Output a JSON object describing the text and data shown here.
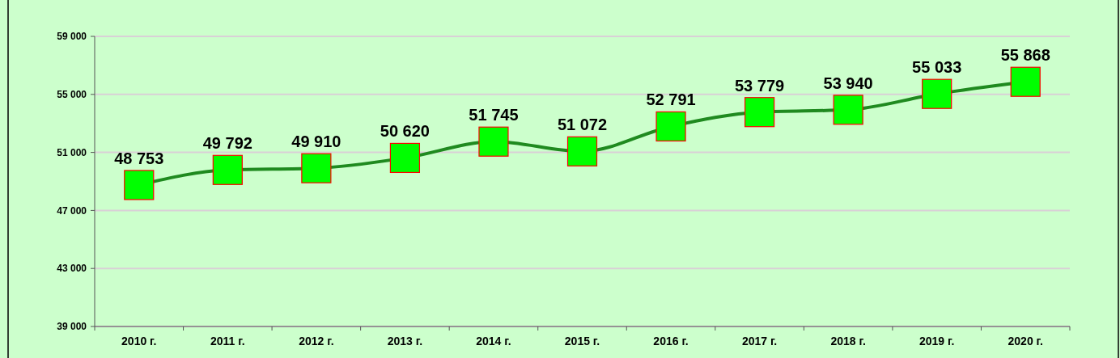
{
  "chart_data": {
    "type": "line",
    "categories": [
      "2010 г.",
      "2011 г.",
      "2012 г.",
      "2013 г.",
      "2014 г.",
      "2015 г.",
      "2016 г.",
      "2017 г.",
      "2018 г.",
      "2019 г.",
      "2020 г."
    ],
    "series": [
      {
        "color": "#1f8a1f",
        "values": [
          48753,
          49792,
          49910,
          50620,
          51745,
          51072,
          52791,
          53779,
          53940,
          55033,
          55868
        ],
        "value_labels": [
          "48 753",
          "49 792",
          "49 910",
          "50 620",
          "51 745",
          "51 072",
          "52 791",
          "53 779",
          "53 940",
          "55 033",
          "55 868"
        ]
      }
    ],
    "ylim": [
      39000,
      59000
    ],
    "yticks": [
      {
        "value": 39000,
        "label": "39 000"
      },
      {
        "value": 43000,
        "label": "43 000"
      },
      {
        "value": 47000,
        "label": "47 000"
      },
      {
        "value": 51000,
        "label": "51 000"
      },
      {
        "value": 55000,
        "label": "55 000"
      },
      {
        "value": 59000,
        "label": "59 000"
      }
    ],
    "grid": "y",
    "marker": "square",
    "line_style": "solid"
  }
}
